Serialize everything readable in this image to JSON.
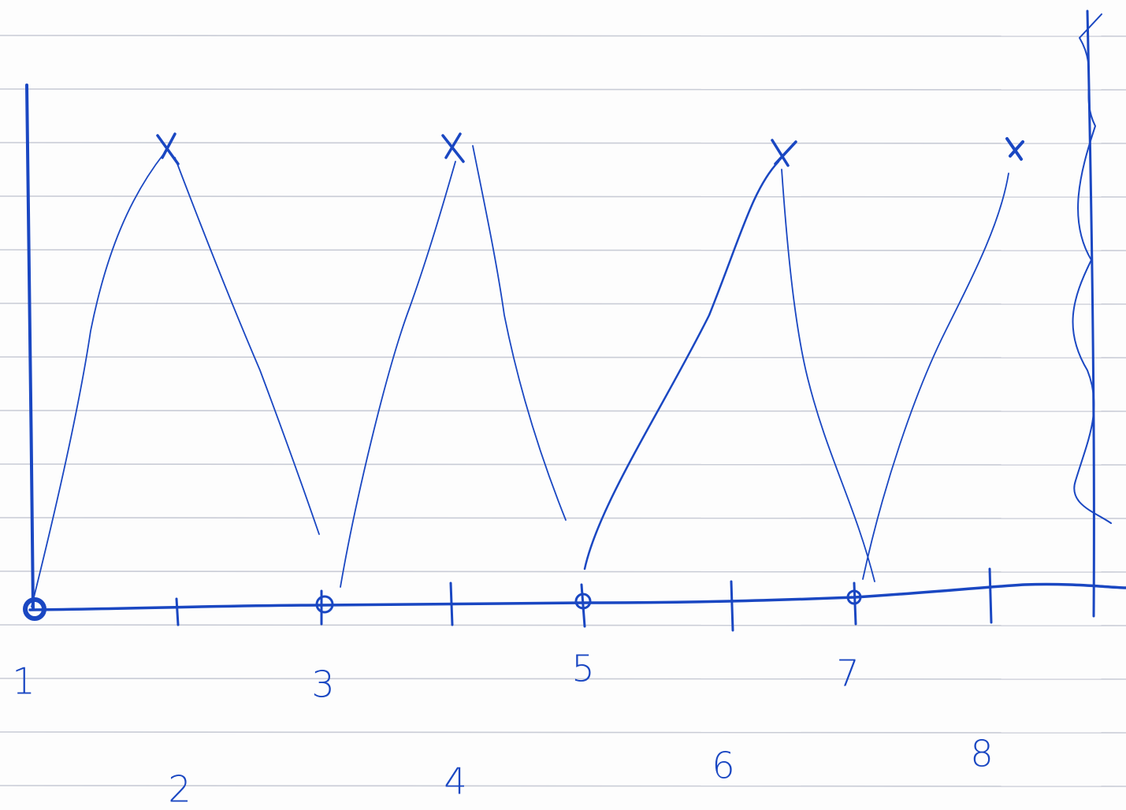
{
  "sketch": {
    "axis_labels": [
      "1",
      "2",
      "3",
      "4",
      "5",
      "6",
      "7",
      "8"
    ]
  }
}
